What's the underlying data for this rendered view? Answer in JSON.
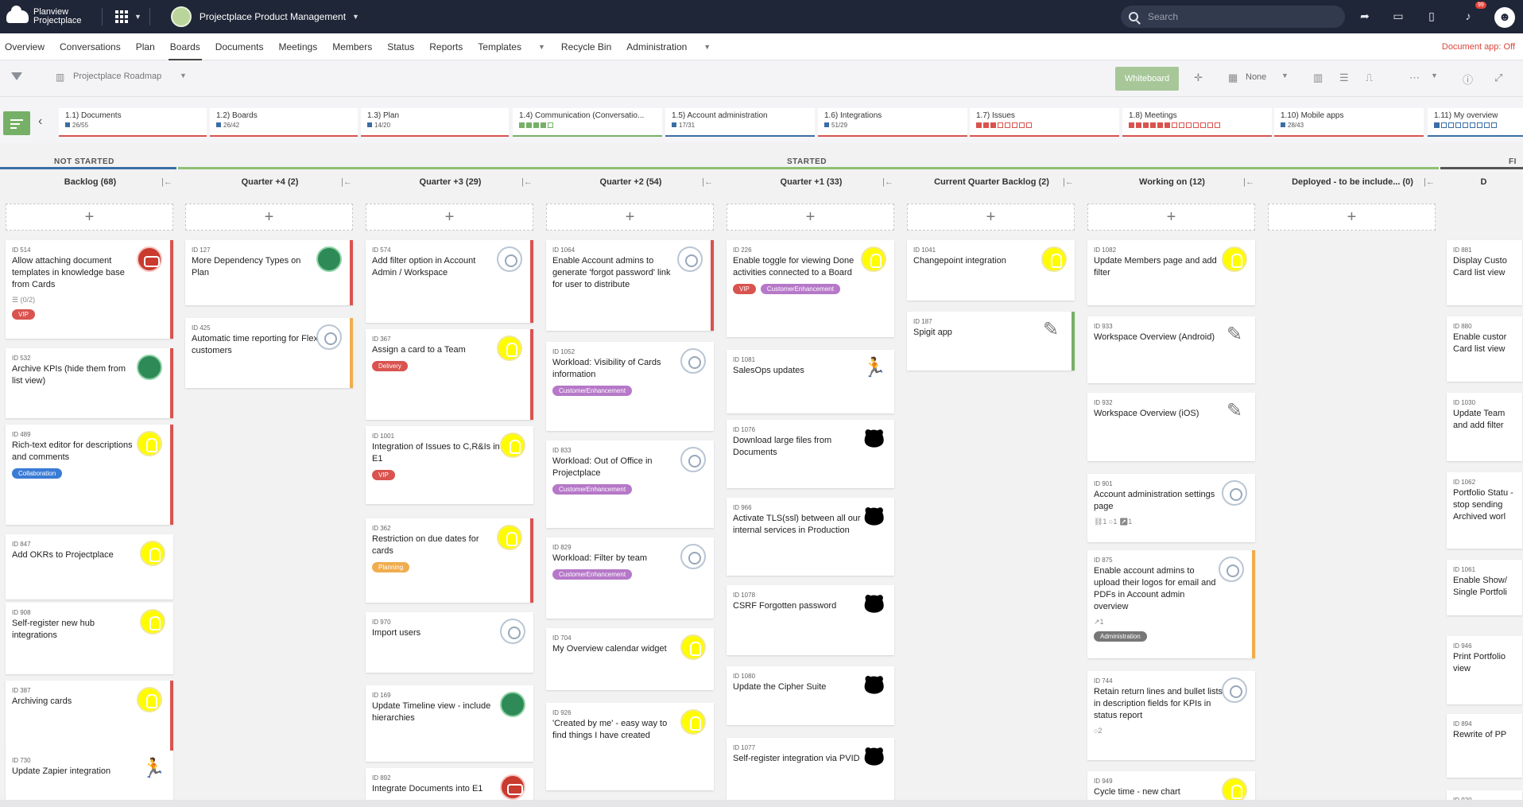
{
  "topbar": {
    "brand_line1": "Planview",
    "brand_line2": "Projectplace",
    "workspace": "Projectplace Product Management",
    "search_placeholder": "Search",
    "notification_count": "99"
  },
  "nav": {
    "items": [
      "Overview",
      "Conversations",
      "Plan",
      "Boards",
      "Documents",
      "Meetings",
      "Members",
      "Status",
      "Reports",
      "Templates",
      "Recycle Bin",
      "Administration"
    ],
    "active": "Boards",
    "document_app": "Document app: Off"
  },
  "toolbar": {
    "board_name": "Projectplace Roadmap",
    "whiteboard": "Whiteboard",
    "group_by": "None"
  },
  "milestones": [
    {
      "title": "1.1) Documents",
      "count": "26/55",
      "kind": "count"
    },
    {
      "title": "1.2) Boards",
      "count": "26/42",
      "kind": "count"
    },
    {
      "title": "1.3) Plan",
      "count": "14/20",
      "kind": "count"
    },
    {
      "title": "1.4) Communication (Conversatio...",
      "count": "",
      "kind": "dots-green"
    },
    {
      "title": "1.5) Account administration",
      "count": "17/31",
      "kind": "count"
    },
    {
      "title": "1.6) Integrations",
      "count": "51/29",
      "kind": "count"
    },
    {
      "title": "1.7) Issues",
      "count": "",
      "kind": "dots-red"
    },
    {
      "title": "1.8) Meetings",
      "count": "",
      "kind": "dots-red2"
    },
    {
      "title": "1.10) Mobile apps",
      "count": "28/43",
      "kind": "count"
    },
    {
      "title": "1.11) My overview",
      "count": "",
      "kind": "dots-blue"
    }
  ],
  "phases": {
    "not_started": "NOT STARTED",
    "started": "STARTED",
    "next": "FI"
  },
  "columns": [
    {
      "name": "Backlog (68)"
    },
    {
      "name": "Quarter +4 (2)"
    },
    {
      "name": "Quarter +3 (29)"
    },
    {
      "name": "Quarter +2 (54)"
    },
    {
      "name": "Quarter +1 (33)"
    },
    {
      "name": "Current Quarter Backlog (2)"
    },
    {
      "name": "Working on (12)"
    },
    {
      "name": "Deployed - to be include... (0)"
    },
    {
      "name": "D"
    }
  ],
  "cards": {
    "c0": [
      {
        "id": "ID 514",
        "title": "Allow attaching document templates in knowledge base from Cards",
        "meta": "☰ (0/2)",
        "tag": "VIP"
      },
      {
        "id": "ID 532",
        "title": "Archive KPIs (hide them from list view)"
      },
      {
        "id": "ID 489",
        "title": "Rich-text editor for descriptions and comments",
        "tag": "Collaboration"
      },
      {
        "id": "ID 847",
        "title": "Add OKRs to Projectplace"
      },
      {
        "id": "ID 908",
        "title": "Self-register new hub integrations"
      },
      {
        "id": "ID 387",
        "title": "Archiving cards"
      },
      {
        "id": "ID 730",
        "title": "Update Zapier integration"
      }
    ],
    "c1": [
      {
        "id": "ID 127",
        "title": "More Dependency Types on Plan"
      },
      {
        "id": "ID 425",
        "title": "Automatic time reporting for Flex customers"
      }
    ],
    "c2": [
      {
        "id": "ID 574",
        "title": "Add filter option in Account Admin / Workspace"
      },
      {
        "id": "ID 367",
        "title": "Assign a card to a Team",
        "tag": "Delivery"
      },
      {
        "id": "ID 1001",
        "title": "Integration of Issues to C,R&Is in E1",
        "tag": "VIP"
      },
      {
        "id": "ID 362",
        "title": "Restriction on due dates for cards",
        "tag": "Planning"
      },
      {
        "id": "ID 970",
        "title": "Import users"
      },
      {
        "id": "ID 169",
        "title": "Update Timeline view - include hierarchies"
      },
      {
        "id": "ID 892",
        "title": "Integrate Documents into E1"
      }
    ],
    "c3": [
      {
        "id": "ID 1064",
        "title": "Enable Account admins to generate 'forgot password' link for user to distribute"
      },
      {
        "id": "ID 1052",
        "title": "Workload: Visibility of Cards information",
        "tag": "CustomerEnhancement"
      },
      {
        "id": "ID 833",
        "title": "Workload: Out of Office in Projectplace",
        "tag": "CustomerEnhancement"
      },
      {
        "id": "ID 829",
        "title": "Workload: Filter by team",
        "tag": "CustomerEnhancement"
      },
      {
        "id": "ID 704",
        "title": "My Overview calendar widget"
      },
      {
        "id": "ID 926",
        "title": "'Created by me' - easy way to find things I have created"
      }
    ],
    "c4": [
      {
        "id": "ID 226",
        "title": "Enable toggle for viewing Done activities connected to a Board",
        "tag": "VIP",
        "tag2": "CustomerEnhancement"
      },
      {
        "id": "ID 1081",
        "title": "SalesOps updates"
      },
      {
        "id": "ID 1076",
        "title": "Download large files from Documents"
      },
      {
        "id": "ID 966",
        "title": "Activate TLS(ssl) between all our internal services in Production"
      },
      {
        "id": "ID 1078",
        "title": "CSRF Forgotten password"
      },
      {
        "id": "ID 1080",
        "title": "Update the Cipher Suite"
      },
      {
        "id": "ID 1077",
        "title": "Self-register integration via PVID"
      }
    ],
    "c5": [
      {
        "id": "ID 1041",
        "title": "Changepoint integration"
      },
      {
        "id": "ID 187",
        "title": "Spigit app"
      }
    ],
    "c6": [
      {
        "id": "ID 1082",
        "title": "Update Members page and add filter"
      },
      {
        "id": "ID 933",
        "title": "Workspace Overview (Android)"
      },
      {
        "id": "ID 932",
        "title": "Workspace Overview (iOS)"
      },
      {
        "id": "ID 901",
        "title": "Account administration settings page",
        "meta": "⛓1   ○1   ↗1"
      },
      {
        "id": "ID 875",
        "title": "Enable account admins to upload their logos for email and PDFs in Account admin overview",
        "meta": "↗1",
        "tag": "Administration"
      },
      {
        "id": "ID 744",
        "title": "Retain return lines and bullet lists in description fields for KPIs in status report",
        "meta": "○2"
      },
      {
        "id": "ID 949",
        "title": "Cycle time - new chart"
      }
    ],
    "c8": [
      {
        "id": "ID 881",
        "title": "Display Custo Card list view"
      },
      {
        "id": "ID 880",
        "title": "Enable custor Card list view"
      },
      {
        "id": "ID 1030",
        "title": "Update Team and add filter"
      },
      {
        "id": "ID 1062",
        "title": "Portfolio Statu - stop sending Archived worl"
      },
      {
        "id": "ID 1061",
        "title": "Enable Show/ Single Portfoli"
      },
      {
        "id": "ID 946",
        "title": "Print Portfolio view"
      },
      {
        "id": "ID 894",
        "title": "Rewrite of PP"
      },
      {
        "id": "ID 920",
        "title": ""
      }
    ]
  },
  "colors": {
    "topbar": "#1f2637",
    "accent_green": "#76b067",
    "tag_red": "#d9534f",
    "tag_purple": "#b678c8",
    "tag_blue": "#3a7bd5",
    "tag_orange": "#f0ad4e",
    "tag_gray": "#777777"
  }
}
